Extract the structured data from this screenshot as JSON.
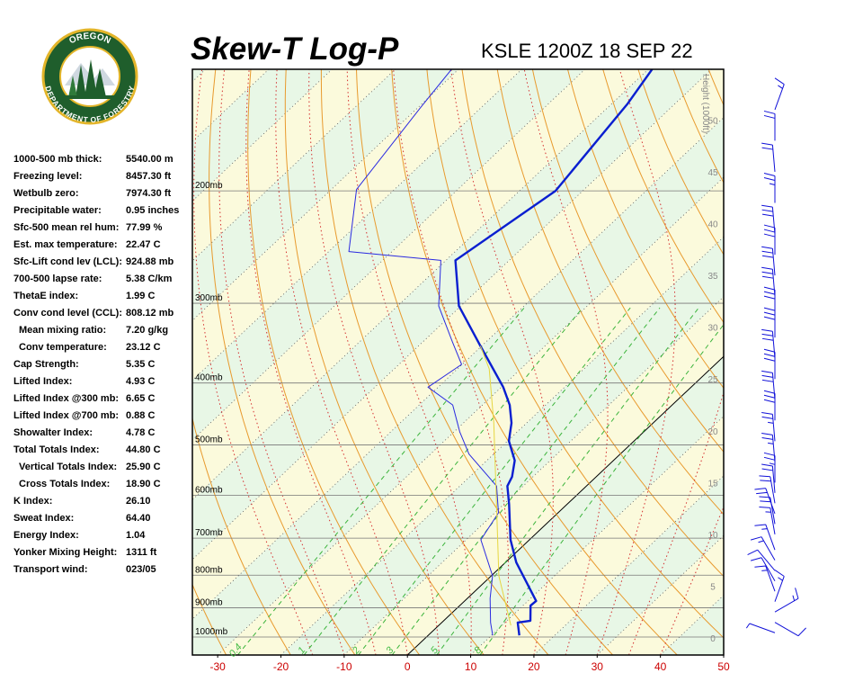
{
  "logo": {
    "top": "OREGON",
    "bottom": "DEPARTMENT OF FORESTRY"
  },
  "stats": [
    [
      "1000-500 mb thick:",
      "5540.00 m"
    ],
    [
      "Freezing level:",
      "8457.30 ft"
    ],
    [
      "Wetbulb zero:",
      "7974.30 ft"
    ],
    [
      "Precipitable water:",
      "0.95 inches"
    ],
    [
      "Sfc-500 mean rel hum:",
      "77.99 %"
    ],
    [
      "Est. max temperature:",
      "22.47 C"
    ],
    [
      "Sfc-Lift cond lev (LCL):",
      "924.88 mb"
    ],
    [
      "700-500 lapse rate:",
      "5.38 C/km"
    ],
    [
      "ThetaE index:",
      "1.99 C"
    ],
    [
      "Conv cond level (CCL):",
      "808.12 mb"
    ],
    [
      "Mean mixing ratio:",
      "7.20 g/kg"
    ],
    [
      "Conv temperature:",
      "23.12 C"
    ],
    [
      "Cap Strength:",
      "5.35 C"
    ],
    [
      "Lifted Index:",
      "4.93 C"
    ],
    [
      "Lifted Index @300 mb:",
      "6.65 C"
    ],
    [
      "Lifted Index @700 mb:",
      "0.88 C"
    ],
    [
      "Showalter Index:",
      "4.78 C"
    ],
    [
      "Total Totals Index:",
      "44.80 C"
    ],
    [
      "Vertical Totals Index:",
      "25.90 C"
    ],
    [
      "Cross Totals Index:",
      "18.90 C"
    ],
    [
      "K Index:",
      "26.10"
    ],
    [
      "Sweat Index:",
      "64.40"
    ],
    [
      "Energy Index:",
      "1.04"
    ],
    [
      "Yonker Mixing Height:",
      "1311 ft"
    ],
    [
      "Transport wind:",
      "023/05"
    ]
  ],
  "chart_data": {
    "type": "skewt",
    "title": "Skew-T Log-P",
    "subtitle": "KSLE 1200Z 18 SEP 22",
    "xlim": [
      -34,
      50
    ],
    "xticks": [
      -30,
      -20,
      -10,
      0,
      10,
      20,
      30,
      40,
      50
    ],
    "ylim": [
      1067,
      129
    ],
    "log_y": true,
    "yticks": [
      {
        "value": 1000,
        "label": "1000mb"
      },
      {
        "value": 900,
        "label": "900mb"
      },
      {
        "value": 800,
        "label": "800mb"
      },
      {
        "value": 700,
        "label": "700mb"
      },
      {
        "value": 600,
        "label": "600mb"
      },
      {
        "value": 500,
        "label": "500mb"
      },
      {
        "value": 400,
        "label": "400mb"
      },
      {
        "value": 300,
        "label": "300mb"
      },
      {
        "value": 200,
        "label": "200mb"
      }
    ],
    "y2label": "Height (1000ft)",
    "y2lim": [
      -1.65,
      54.9
    ],
    "y2ticks": [
      0,
      5,
      10,
      15,
      20,
      25,
      30,
      35,
      40,
      45,
      50
    ],
    "mixing_ratios": [
      0.4,
      1,
      2,
      3,
      5,
      8
    ],
    "series": [
      {
        "color": "#0a1fd0",
        "pressure": [
          994,
          949,
          943,
          893,
          878,
          764,
          704,
          619,
          580,
          561,
          529,
          493,
          462,
          433,
          406,
          374,
          350,
          303,
          257,
          200,
          146,
          129
        ],
        "values": [
          14.4,
          12.0,
          13.7,
          11.2,
          11.3,
          1.7,
          -3.0,
          -9.2,
          -12.5,
          -13.3,
          -15.6,
          -19.8,
          -22.4,
          -25.7,
          -29.7,
          -35.5,
          -40.2,
          -50.3,
          -58.5,
          -54.3,
          -57.5,
          -59.4
        ]
      },
      {
        "color": "#2a2ae0",
        "pressure": [
          994,
          949,
          870,
          802,
          704,
          639,
          580,
          517,
          477,
          433,
          406,
          374,
          345,
          303,
          257,
          249,
          199,
          148,
          129
        ],
        "values": [
          10.2,
          7.7,
          3.6,
          0.2,
          -7.7,
          -9.4,
          -14.2,
          -23.9,
          -29.1,
          -34.7,
          -41.6,
          -40.1,
          -45.3,
          -53.5,
          -60.8,
          -76.8,
          -86.0,
          -89.6,
          -91.1
        ]
      },
      {
        "color": "#e6d640",
        "pressure": [
          959,
          802,
          619,
          462,
          380,
          350
        ],
        "values": [
          11.4,
          1.2,
          -11.2,
          -25.2,
          -35.0,
          -40.2
        ]
      }
    ],
    "wind": {
      "height": [
        0.5,
        1.5,
        2.5,
        3.5,
        4.5,
        5.5,
        6.5,
        7.5,
        8.5,
        10,
        11,
        12,
        13,
        14,
        15,
        17,
        19,
        21,
        23,
        25,
        27,
        29,
        31,
        33,
        35,
        37,
        39,
        42,
        45,
        48,
        51
      ],
      "direction": [
        290,
        120,
        60,
        20,
        340,
        330,
        320,
        330,
        340,
        350,
        350,
        340,
        350,
        355,
        0,
        355,
        355,
        0,
        355,
        0,
        355,
        0,
        360,
        355,
        355,
        0,
        355,
        0,
        355,
        0,
        20
      ],
      "speed": [
        5,
        10,
        15,
        15,
        15,
        10,
        10,
        15,
        15,
        15,
        20,
        20,
        20,
        20,
        25,
        25,
        25,
        30,
        30,
        30,
        30,
        30,
        30,
        30,
        30,
        30,
        30,
        25,
        20,
        20,
        15
      ],
      "color": "#1010d8"
    }
  }
}
